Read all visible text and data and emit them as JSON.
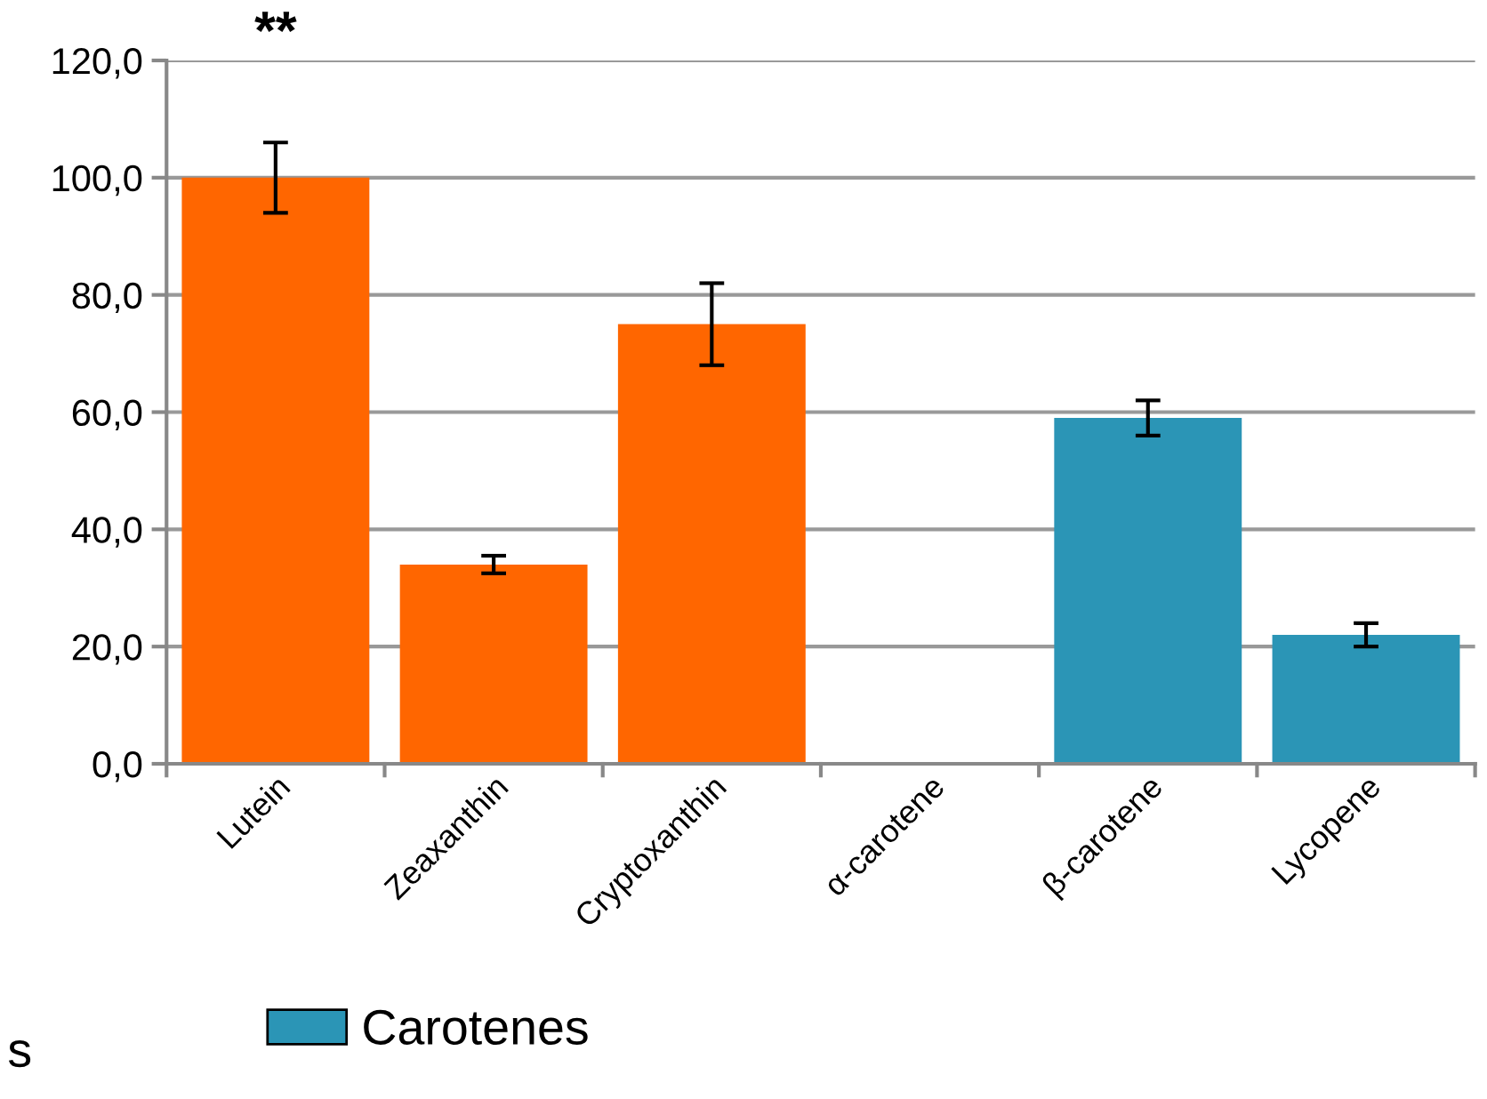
{
  "chart_data": {
    "type": "bar",
    "categories": [
      "Lutein",
      "Zeaxanthin",
      "Cryptoxanthin",
      "α-carotene",
      "β-carotene",
      "Lycopene"
    ],
    "series": [
      {
        "color": "#ff6600",
        "values": [
          100,
          34,
          75,
          0,
          null,
          null
        ],
        "errors": [
          6,
          1.5,
          7,
          null,
          null,
          null
        ]
      },
      {
        "name": "Carotenes",
        "color": "#2b95b6",
        "values": [
          null,
          null,
          null,
          null,
          59,
          22
        ],
        "errors": [
          null,
          null,
          null,
          null,
          3,
          2
        ]
      }
    ],
    "ylim": [
      0,
      120
    ],
    "yticks": [
      {
        "value": 0,
        "label": "0,0"
      },
      {
        "value": 20,
        "label": "20,0"
      },
      {
        "value": 40,
        "label": "40,0"
      },
      {
        "value": 60,
        "label": "60,0"
      },
      {
        "value": 80,
        "label": "80,0"
      },
      {
        "value": 100,
        "label": "100,0"
      },
      {
        "value": 120,
        "label": "120,0"
      }
    ],
    "grid": "y",
    "legend": "bottom",
    "annotations": [
      "**",
      "s"
    ]
  }
}
